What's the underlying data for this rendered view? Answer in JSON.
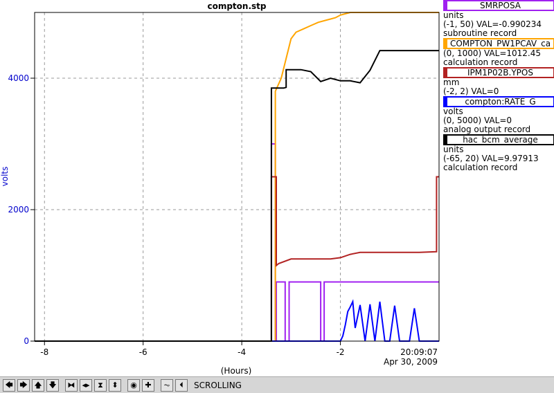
{
  "chart_data": {
    "type": "line",
    "title": "compton.stp",
    "xlabel": "(Hours)",
    "ylabel": "volts",
    "xlim": [
      -8.2,
      0
    ],
    "ylim": [
      0,
      5000
    ],
    "x_ticks": [
      -8,
      -6,
      -4,
      -2
    ],
    "x_tick_labels": [
      "-8",
      "-6",
      "-4",
      "-2"
    ],
    "y_ticks": [
      0,
      2000,
      4000
    ],
    "y_tick_labels": [
      "0",
      "2000",
      "4000"
    ],
    "grid": true,
    "timestamp": "20:09:07",
    "date": "Apr 30, 2009",
    "series": [
      {
        "name": "SMRPOSA",
        "color": "#a020f0",
        "x": [
          -8.2,
          -3.4,
          -3.4,
          -3.32,
          -3.32,
          -3.3,
          -3.3,
          -3.12,
          -3.12,
          -3.04,
          -3.04,
          -2.4,
          -2.4,
          -2.33,
          -2.33,
          0
        ],
        "y": [
          0,
          0,
          3000,
          3000,
          0,
          0,
          900,
          900,
          0,
          0,
          900,
          900,
          0,
          0,
          900,
          900
        ]
      },
      {
        "name": "COMPTON_PW1PCAV_ca",
        "color": "#ffa500",
        "x": [
          -8.2,
          -3.32,
          -3.32,
          -3.2,
          -3.0,
          -2.9,
          -2.75,
          -2.6,
          -2.45,
          -2.3,
          -2.2,
          -2.1,
          -2.0,
          -1.9,
          -1.8,
          -1.6,
          -1.4,
          -1.2,
          -1.0,
          -0.8,
          -0.6,
          -0.4,
          -0.2,
          0
        ],
        "y": [
          0,
          0,
          3800,
          4000,
          4600,
          4700,
          4750,
          4800,
          4850,
          4880,
          4900,
          4920,
          4960,
          4980,
          5000,
          5000,
          5000,
          5000,
          5000,
          5000,
          5000,
          5000,
          5000,
          5000
        ]
      },
      {
        "name": "IPM1P02B.YPOS",
        "color": "#b22222",
        "x": [
          -8.2,
          -3.4,
          -3.4,
          -3.3,
          -3.3,
          -3.25,
          -3.0,
          -2.6,
          -2.2,
          -2.0,
          -1.8,
          -1.6,
          -1.2,
          -0.8,
          -0.4,
          -0.05,
          -0.05,
          0
        ],
        "y": [
          0,
          0,
          2500,
          2500,
          1150,
          1180,
          1250,
          1250,
          1250,
          1270,
          1320,
          1350,
          1350,
          1350,
          1350,
          1360,
          2500,
          2500
        ]
      },
      {
        "name": "compton:RATE_G",
        "color": "#0000ff",
        "x": [
          -8.2,
          -2.0,
          -1.95,
          -1.9,
          -1.85,
          -1.8,
          -1.75,
          -1.7,
          -1.6,
          -1.5,
          -1.4,
          -1.3,
          -1.2,
          -1.1,
          -1.0,
          -0.9,
          -0.8,
          -0.7,
          -0.6,
          -0.5,
          -0.4,
          -0.3,
          -0.2,
          -0.1,
          0
        ],
        "y": [
          0,
          0,
          80,
          250,
          450,
          520,
          600,
          200,
          550,
          0,
          560,
          0,
          600,
          0,
          0,
          540,
          0,
          0,
          0,
          500,
          0,
          0,
          0,
          0,
          0
        ]
      },
      {
        "name": "hac_bcm_average",
        "color": "#000000",
        "x": [
          -8.2,
          -3.4,
          -3.4,
          -3.15,
          -3.1,
          -3.1,
          -2.8,
          -2.6,
          -2.4,
          -2.2,
          -2.0,
          -1.8,
          -1.6,
          -1.4,
          -1.2,
          -1.1,
          -1.0,
          -0.8,
          -0.6,
          -0.4,
          -0.2,
          0
        ],
        "y": [
          0,
          0,
          3850,
          3850,
          3860,
          4130,
          4130,
          4100,
          3950,
          4000,
          3960,
          3960,
          3930,
          4120,
          4420,
          4420,
          4420,
          4420,
          4420,
          4420,
          4420,
          4420
        ]
      }
    ]
  },
  "legend": [
    {
      "name": "SMRPOSA",
      "color": "#a020f0",
      "line1": "units",
      "line2": "(-1, 50) VAL=-0.990234",
      "line3": "subroutine record"
    },
    {
      "name": "COMPTON_PW1PCAV_ca",
      "color": "#ffa500",
      "line1": "",
      "line2": "(0, 1000) VAL=1012.45",
      "line3": "calculation record"
    },
    {
      "name": "IPM1P02B.YPOS",
      "color": "#b22222",
      "line1": "mm",
      "line2": "(-2, 2) VAL=0",
      "line3": ""
    },
    {
      "name": "compton:RATE_G",
      "color": "#0000ff",
      "line1": "volts",
      "line2": "(0, 5000) VAL=0",
      "line3": "analog output record"
    },
    {
      "name": "hac_bcm_average",
      "color": "#000000",
      "line1": "units",
      "line2": "(-65, 20) VAL=9.97913",
      "line3": "calculation record"
    }
  ],
  "toolbar": {
    "buttons": [
      {
        "name": "pan-left-button",
        "icon": "arrow-left-icon",
        "glyph": "🡄"
      },
      {
        "name": "pan-right-button",
        "icon": "arrow-right-icon",
        "glyph": "🡆"
      },
      {
        "name": "pan-up-button",
        "icon": "arrow-up-icon",
        "glyph": "🡅"
      },
      {
        "name": "pan-down-button",
        "icon": "arrow-down-icon",
        "glyph": "🡇"
      },
      {
        "name": "zoom-in-x-button",
        "icon": "zoom-in-x-icon",
        "glyph": "⧓"
      },
      {
        "name": "zoom-out-x-button",
        "icon": "zoom-out-x-icon",
        "glyph": "◂▸"
      },
      {
        "name": "zoom-in-y-button",
        "icon": "zoom-in-y-icon",
        "glyph": "⧗"
      },
      {
        "name": "zoom-out-y-button",
        "icon": "zoom-out-y-icon",
        "glyph": "⬍"
      },
      {
        "name": "auto-scale-button",
        "icon": "target-icon",
        "glyph": "◉"
      },
      {
        "name": "zoom-plus-button",
        "icon": "plus-icon",
        "glyph": "✚"
      },
      {
        "name": "scroll-mode-button",
        "icon": "scroll-mode-icon",
        "glyph": "⏦"
      },
      {
        "name": "scroll-back-button",
        "icon": "scroll-back-icon",
        "glyph": "⏴"
      }
    ],
    "status": "SCROLLING"
  }
}
